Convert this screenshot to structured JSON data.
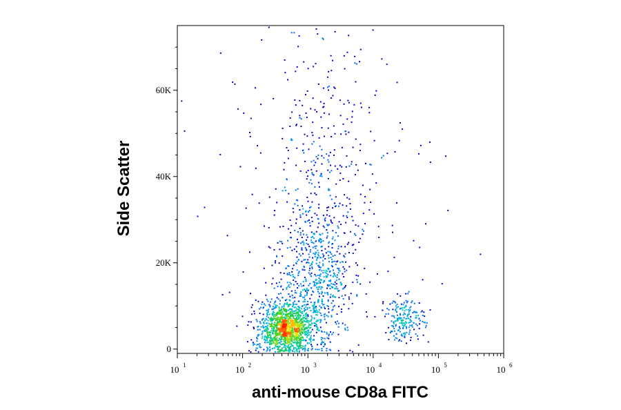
{
  "chart_data": {
    "type": "scatter",
    "subtype": "flow-cytometry density dot plot",
    "xlabel": "anti-mouse CD8a FITC",
    "ylabel": "Side Scatter",
    "x_scale": "log",
    "xlim": [
      10,
      1000000
    ],
    "ylim": [
      -1000,
      75000
    ],
    "x_ticks": [
      {
        "base": "10",
        "exp": "1",
        "value": 10
      },
      {
        "base": "10",
        "exp": "2",
        "value": 100
      },
      {
        "base": "10",
        "exp": "3",
        "value": 1000
      },
      {
        "base": "10",
        "exp": "4",
        "value": 10000
      },
      {
        "base": "10",
        "exp": "5",
        "value": 100000
      },
      {
        "base": "10",
        "exp": "6",
        "value": 1000000
      }
    ],
    "y_ticks": [
      {
        "label": "0",
        "value": 0
      },
      {
        "label": "20K",
        "value": 20000
      },
      {
        "label": "40K",
        "value": 40000
      },
      {
        "label": "60K",
        "value": 60000
      }
    ],
    "grid": false,
    "color_scale": [
      "#0000cc",
      "#0080ff",
      "#00c8c8",
      "#22cc22",
      "#ffee00",
      "#ff2200"
    ],
    "populations": [
      {
        "name": "",
        "center_x": 450,
        "center_y": 5000,
        "spread_log10_x": 0.2,
        "spread_y": 3000,
        "count": 1300
      },
      {
        "name": "",
        "center_x": 1300,
        "center_y": 17000,
        "spread_log10_x": 0.3,
        "spread_y": 9000,
        "count": 650
      },
      {
        "name": "",
        "center_x": 1800,
        "center_y": 42000,
        "spread_log10_x": 0.45,
        "spread_y": 18000,
        "count": 320
      },
      {
        "name": "",
        "center_x": 30000,
        "center_y": 7000,
        "spread_log10_x": 0.15,
        "spread_y": 2500,
        "count": 200
      },
      {
        "name": "",
        "center_x": 3000,
        "center_y": 35000,
        "spread_log10_x": 1.0,
        "spread_y": 22000,
        "count": 110
      }
    ]
  }
}
